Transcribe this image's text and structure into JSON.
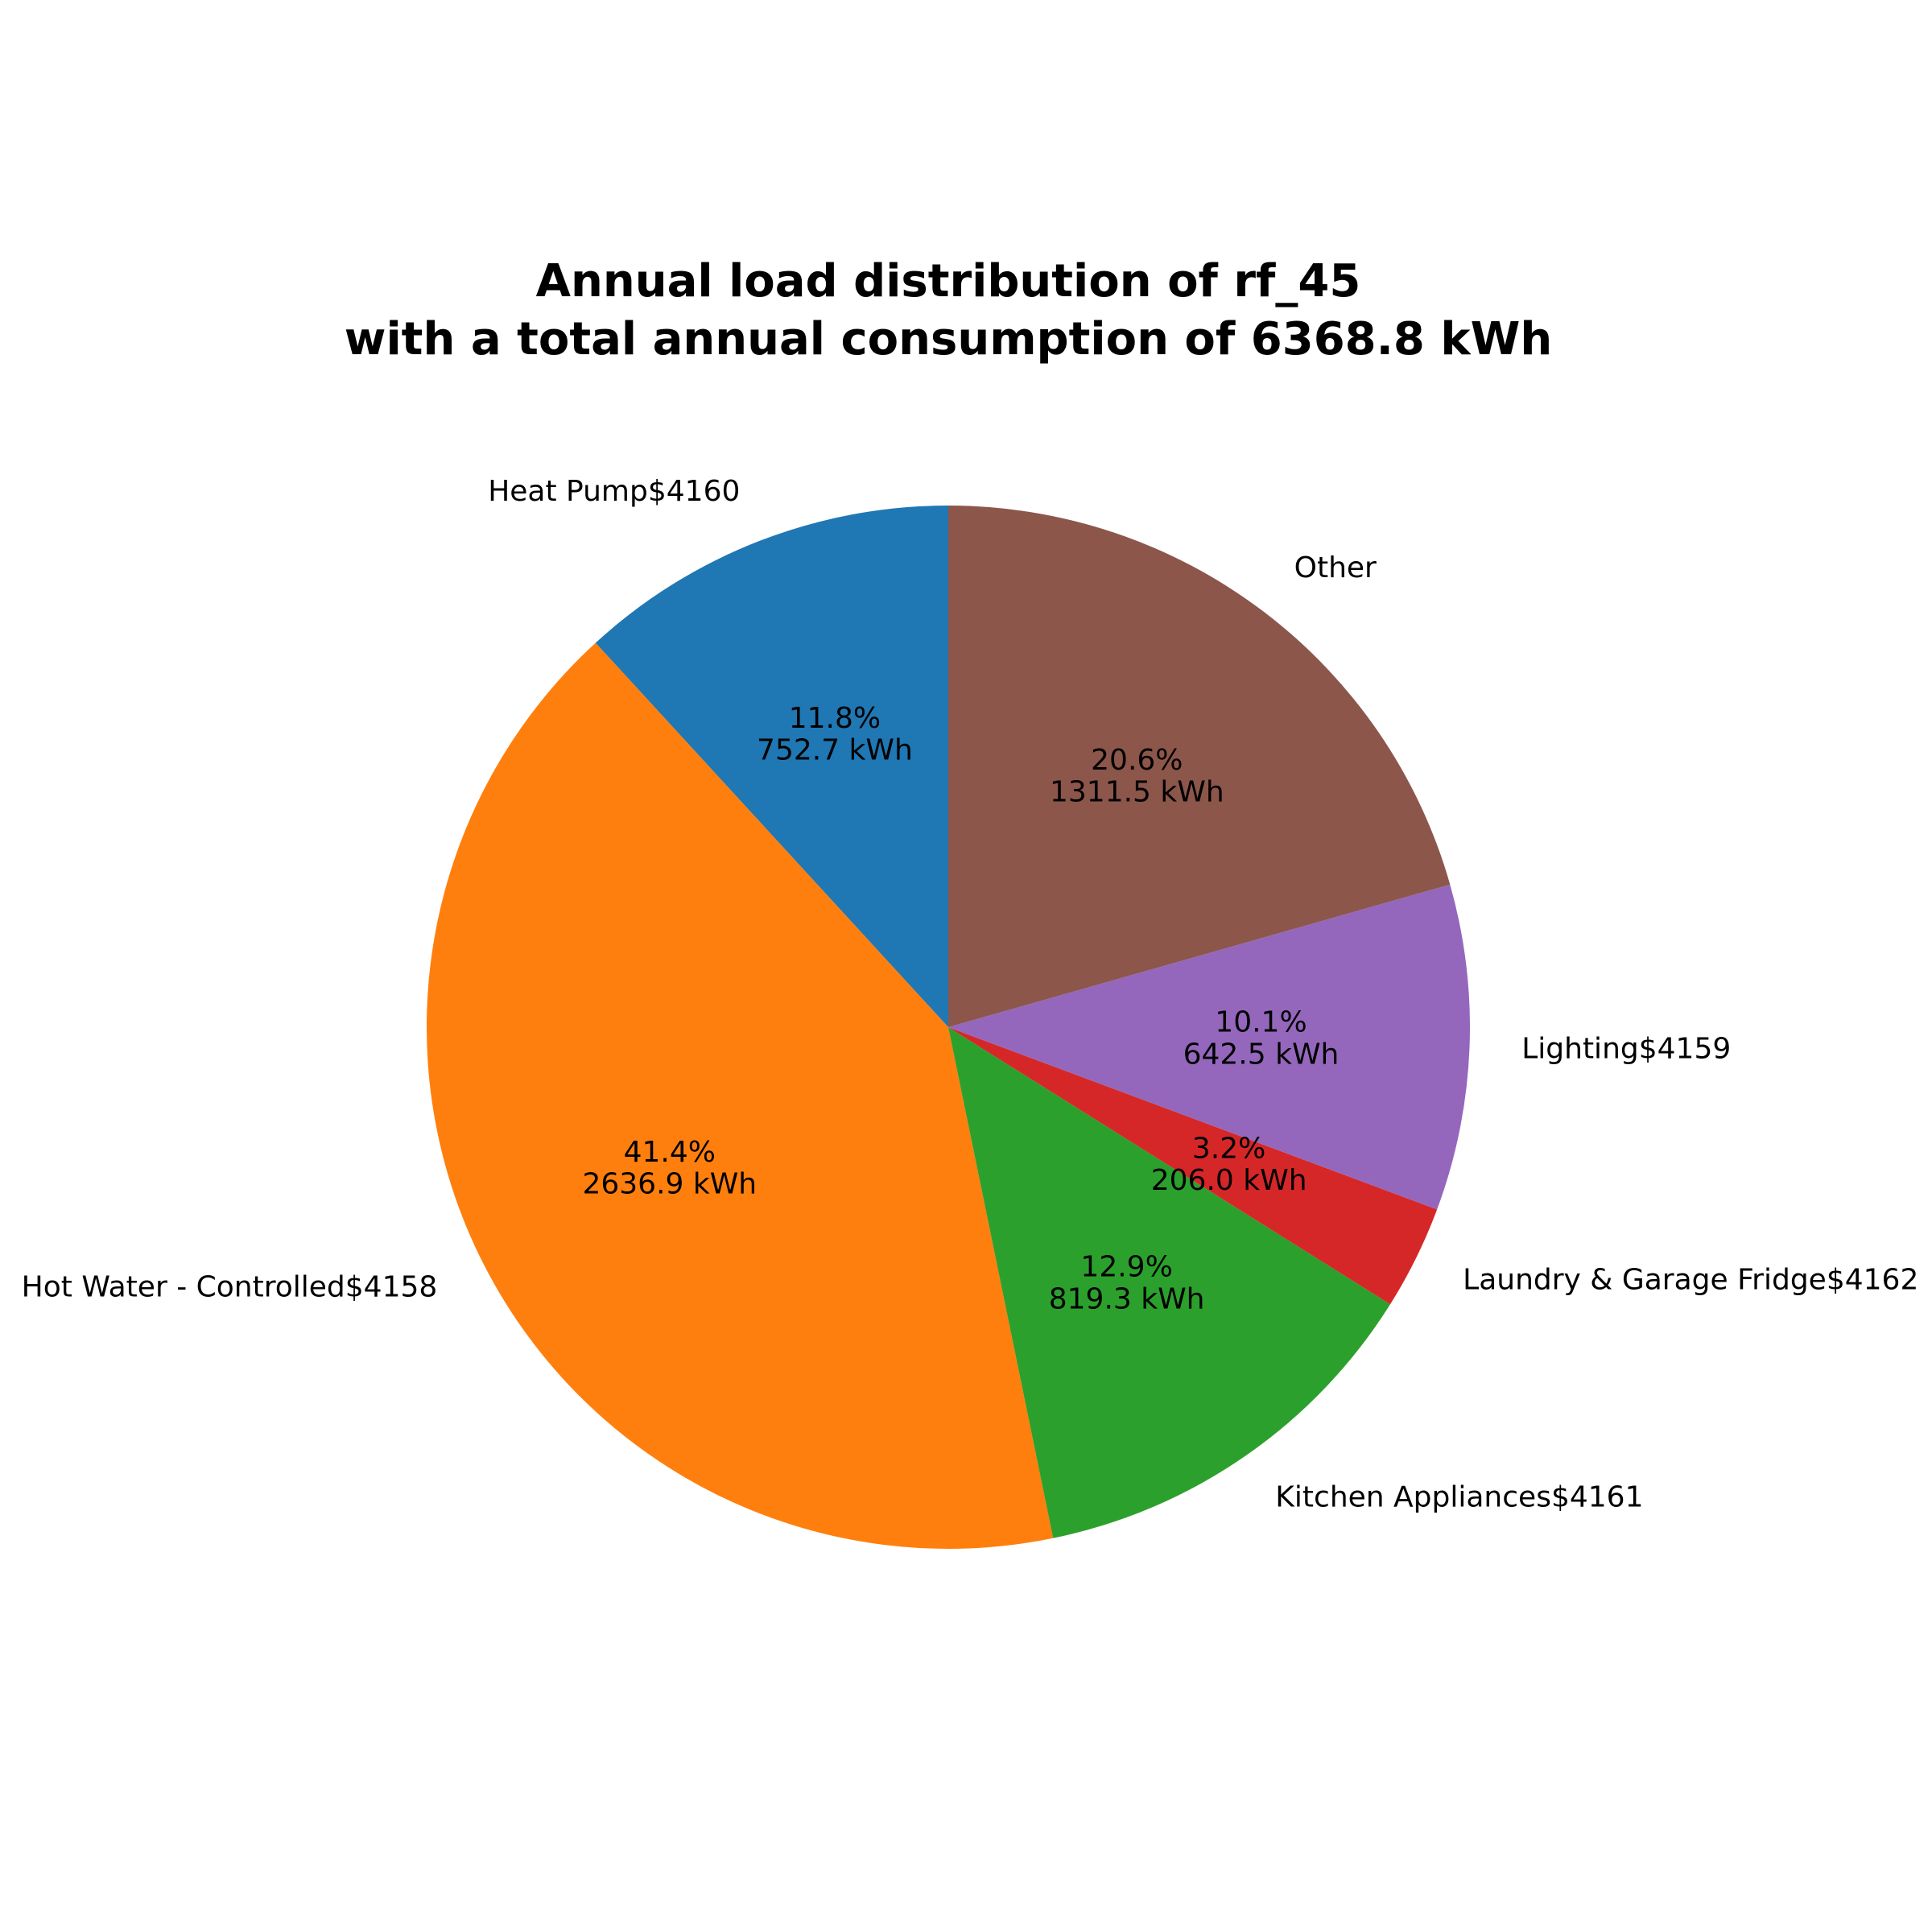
{
  "chart_data": {
    "type": "pie",
    "title_lines": [
      "Annual load distribution of rf_45",
      "with a total annual consumption of 6368.8 kWh"
    ],
    "start_angle_deg": 90,
    "direction": "counterclockwise",
    "slices": [
      {
        "label": "Heat Pump$4160",
        "value": 752.7,
        "percent": "11.8%",
        "value_text": "752.7 kWh",
        "color": "#1f77b4"
      },
      {
        "label": "Hot Water - Controlled$4158",
        "value": 2636.9,
        "percent": "41.4%",
        "value_text": "2636.9 kWh",
        "color": "#ff7f0e"
      },
      {
        "label": "Kitchen Appliances$4161",
        "value": 819.3,
        "percent": "12.9%",
        "value_text": "819.3 kWh",
        "color": "#2ca02c"
      },
      {
        "label": "Laundry & Garage Fridge$4162",
        "value": 206.0,
        "percent": "3.2%",
        "value_text": "206.0 kWh",
        "color": "#d62728"
      },
      {
        "label": "Lighting$4159",
        "value": 642.5,
        "percent": "10.1%",
        "value_text": "642.5 kWh",
        "color": "#9467bd"
      },
      {
        "label": "Other",
        "value": 1311.5,
        "percent": "20.6%",
        "value_text": "1311.5 kWh",
        "color": "#8c564b"
      }
    ]
  }
}
